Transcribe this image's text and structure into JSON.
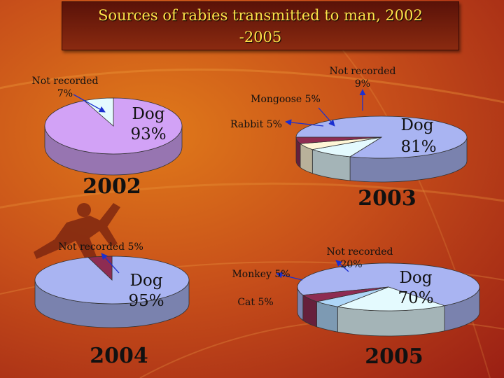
{
  "title": "Sources of rabies transmitted to man, 2002 -2005",
  "title_lines": [
    "Sources of rabies transmitted to man, 2002",
    "-2005"
  ],
  "colors": {
    "title_text": "#ffe24a",
    "title_bg": "#6a1a0a",
    "dog": "#a9b4f2",
    "dog_2002": "#d2a2f6",
    "not_recorded": "#e4fafe",
    "mongoose": "#fff6d6",
    "rabbit": "#8e2c52",
    "monkey": "#aed6f8",
    "cat": "#8e2c52",
    "arrow": "#1a2fd0"
  },
  "chart_data": [
    {
      "type": "pie",
      "year_label": "2002",
      "slices": [
        {
          "label": "Dog",
          "value": 93,
          "value_text": "93%",
          "color": "#d2a2f6"
        },
        {
          "label": "Not recorded",
          "value": 7,
          "value_text": "7%",
          "color": "#e4fafe"
        }
      ]
    },
    {
      "type": "pie",
      "year_label": "2003",
      "slices": [
        {
          "label": "Dog",
          "value": 81,
          "value_text": "81%",
          "color": "#a9b4f2"
        },
        {
          "label": "Not recorded",
          "value": 9,
          "value_text": "9%",
          "color": "#e4fafe"
        },
        {
          "label": "Mongoose",
          "value": 5,
          "value_text": "5%",
          "color": "#fff6d6"
        },
        {
          "label": "Rabbit",
          "value": 5,
          "value_text": "5%",
          "color": "#8e2c52"
        }
      ]
    },
    {
      "type": "pie",
      "year_label": "2004",
      "slices": [
        {
          "label": "Dog",
          "value": 95,
          "value_text": "95%",
          "color": "#a9b4f2"
        },
        {
          "label": "Not recorded",
          "value": 5,
          "value_text": "5%",
          "color": "#8e2c52"
        }
      ]
    },
    {
      "type": "pie",
      "year_label": "2005",
      "slices": [
        {
          "label": "Dog",
          "value": 70,
          "value_text": "70%",
          "color": "#a9b4f2"
        },
        {
          "label": "Not recorded",
          "value": 20,
          "value_text": "20%",
          "color": "#e4fafe"
        },
        {
          "label": "Monkey",
          "value": 5,
          "value_text": "5%",
          "color": "#aed6f8"
        },
        {
          "label": "Cat",
          "value": 5,
          "value_text": "5%",
          "color": "#8e2c52"
        }
      ]
    }
  ],
  "labels": {
    "c2002": {
      "nr_line1": "Not recorded",
      "nr_line2": "7%",
      "dog_line1": "Dog",
      "dog_line2": "93%"
    },
    "c2003": {
      "nr_line1": "Not recorded",
      "nr_line2": "9%",
      "mongoose": "Mongoose 5%",
      "rabbit": "Rabbit  5%",
      "dog_line1": "Dog",
      "dog_line2": "81%"
    },
    "c2004": {
      "nr": "Not recorded 5%",
      "dog_line1": "Dog",
      "dog_line2": "95%"
    },
    "c2005": {
      "nr_line1": "Not recorded",
      "nr_line2": "20%",
      "monkey": "Monkey 5%",
      "cat": "Cat 5%",
      "dog_line1": "Dog",
      "dog_line2": "70%"
    }
  }
}
